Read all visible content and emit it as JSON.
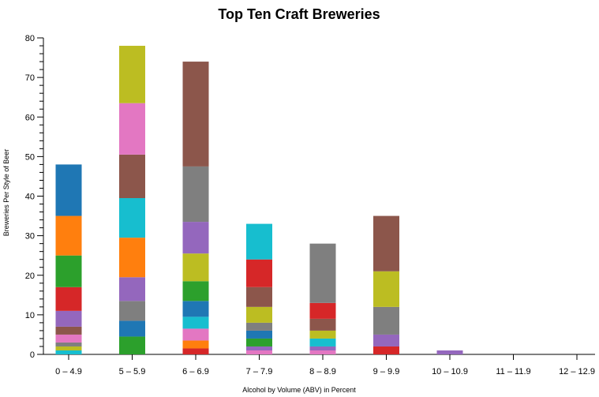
{
  "chart_data": {
    "type": "bar",
    "stacked": true,
    "title": "Top Ten Craft Breweries",
    "xlabel": "Alcohol by Volume (ABV) in Percent",
    "ylabel": "Breweries Per Style of Beer",
    "ylim": [
      0,
      80
    ],
    "yticks": [
      0,
      10,
      20,
      30,
      40,
      50,
      60,
      70,
      80
    ],
    "grid": false,
    "categories": [
      "0 – 4.9",
      "5 – 5.9",
      "6 – 6.9",
      "7 – 7.9",
      "8 – 8.9",
      "9 – 9.9",
      "10 – 10.9",
      "11 – 11.9",
      "12 – 12.9"
    ],
    "totals": [
      48,
      78,
      74,
      33,
      28,
      35,
      1,
      0,
      0
    ],
    "palette": {
      "blue": "#1f77b4",
      "orange": "#ff7f0e",
      "green": "#2ca02c",
      "red": "#d62728",
      "purple": "#9467bd",
      "brown": "#8c564b",
      "pink": "#e377c2",
      "gray": "#7f7f7f",
      "olive": "#bcbd22",
      "cyan": "#17becf"
    },
    "stacks": [
      [
        {
          "color": "cyan",
          "value": 1
        },
        {
          "color": "olive",
          "value": 1
        },
        {
          "color": "gray",
          "value": 1
        },
        {
          "color": "pink",
          "value": 2
        },
        {
          "color": "brown",
          "value": 2
        },
        {
          "color": "purple",
          "value": 4
        },
        {
          "color": "red",
          "value": 6
        },
        {
          "color": "green",
          "value": 8
        },
        {
          "color": "orange",
          "value": 10
        },
        {
          "color": "blue",
          "value": 13
        }
      ],
      [
        {
          "color": "green",
          "value": 4.5
        },
        {
          "color": "blue",
          "value": 4
        },
        {
          "color": "gray",
          "value": 5
        },
        {
          "color": "purple",
          "value": 6
        },
        {
          "color": "orange",
          "value": 10
        },
        {
          "color": "cyan",
          "value": 10
        },
        {
          "color": "brown",
          "value": 11
        },
        {
          "color": "pink",
          "value": 13
        },
        {
          "color": "olive",
          "value": 14.5
        }
      ],
      [
        {
          "color": "red",
          "value": 1.5
        },
        {
          "color": "orange",
          "value": 2
        },
        {
          "color": "pink",
          "value": 3
        },
        {
          "color": "cyan",
          "value": 3
        },
        {
          "color": "blue",
          "value": 4
        },
        {
          "color": "green",
          "value": 5
        },
        {
          "color": "olive",
          "value": 7
        },
        {
          "color": "purple",
          "value": 8
        },
        {
          "color": "gray",
          "value": 14
        },
        {
          "color": "brown",
          "value": 26.5
        }
      ],
      [
        {
          "color": "pink",
          "value": 1
        },
        {
          "color": "purple",
          "value": 1
        },
        {
          "color": "green",
          "value": 2
        },
        {
          "color": "blue",
          "value": 2
        },
        {
          "color": "gray",
          "value": 2
        },
        {
          "color": "olive",
          "value": 4
        },
        {
          "color": "brown",
          "value": 5
        },
        {
          "color": "red",
          "value": 7
        },
        {
          "color": "cyan",
          "value": 9
        }
      ],
      [
        {
          "color": "pink",
          "value": 1
        },
        {
          "color": "purple",
          "value": 1
        },
        {
          "color": "cyan",
          "value": 2
        },
        {
          "color": "olive",
          "value": 2
        },
        {
          "color": "brown",
          "value": 3
        },
        {
          "color": "red",
          "value": 4
        },
        {
          "color": "gray",
          "value": 15
        }
      ],
      [
        {
          "color": "red",
          "value": 2
        },
        {
          "color": "purple",
          "value": 3
        },
        {
          "color": "gray",
          "value": 7
        },
        {
          "color": "olive",
          "value": 9
        },
        {
          "color": "brown",
          "value": 14
        }
      ],
      [
        {
          "color": "purple",
          "value": 1
        }
      ],
      [],
      []
    ]
  }
}
